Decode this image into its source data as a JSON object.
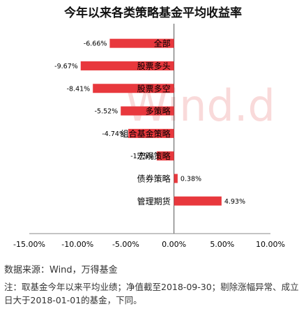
{
  "chart_data": {
    "type": "bar",
    "orientation": "horizontal",
    "title": "今年以来各类策略基金平均收益率",
    "categories": [
      "全部",
      "股票多头",
      "股票多空",
      "多策略",
      "组合基金策略",
      "宏观策略",
      "债券策略",
      "管理期货"
    ],
    "values": [
      -6.66,
      -9.67,
      -8.41,
      -5.52,
      -4.74,
      -1.79,
      0.38,
      4.93
    ],
    "value_labels": [
      "-6.66%",
      "-9.67%",
      "-8.41%",
      "-5.52%",
      "-4.74%",
      "-1.79%",
      "0.38%",
      "4.93%"
    ],
    "xlim": [
      -15,
      10
    ],
    "x_ticks": [
      -15,
      -10,
      -5,
      0,
      5,
      10
    ],
    "x_tick_labels": [
      "-15.00%",
      "-10.00%",
      "-5.00%",
      "0.00%",
      "5.00%",
      "10.00%"
    ],
    "grid": false,
    "bar_color": "#e8383d",
    "watermark": "Wind"
  },
  "source": "数据来源：Wind，万得基金",
  "note": "注：取基金今年以来平均业绩；净值截至2018-09-30；剔除涨幅异常、成立日大于2018-01-01的基金，下同。"
}
